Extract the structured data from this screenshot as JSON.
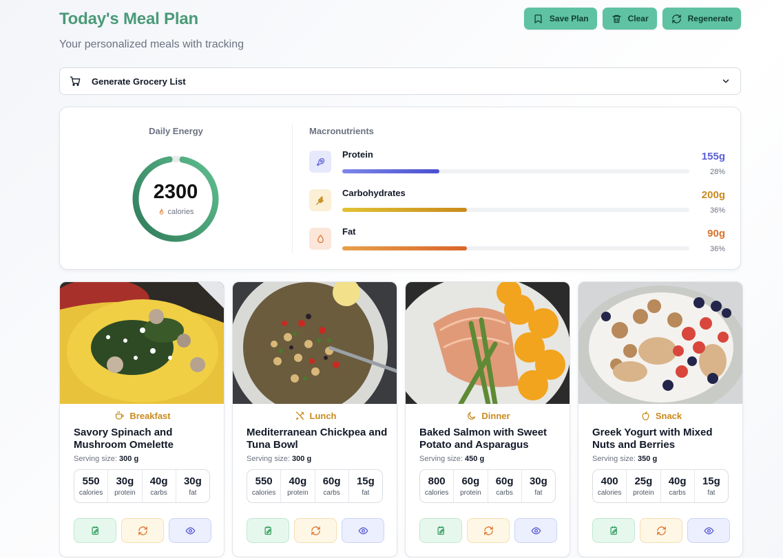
{
  "header": {
    "title": "Today's Meal Plan",
    "subtitle": "Your personalized meals with tracking"
  },
  "actions": {
    "save_label": "Save Plan",
    "clear_label": "Clear",
    "regenerate_label": "Regenerate"
  },
  "grocery": {
    "label": "Generate Grocery List"
  },
  "energy": {
    "title": "Daily Energy",
    "value": "2300",
    "unit": "calories"
  },
  "macros": {
    "title": "Macronutrients",
    "items": [
      {
        "name": "Protein",
        "value": "155g",
        "percent": "28%",
        "fill_fraction": 0.28,
        "color": "#5b5fd6"
      },
      {
        "name": "Carbohydrates",
        "value": "200g",
        "percent": "36%",
        "fill_fraction": 0.36,
        "color": "#c98a1c"
      },
      {
        "name": "Fat",
        "value": "90g",
        "percent": "36%",
        "fill_fraction": 0.36,
        "color": "#d9712b"
      }
    ]
  },
  "meals": [
    {
      "type": "Breakfast",
      "name": "Savory Spinach and Mushroom Omelette",
      "serving_label": "Serving size:",
      "serving": "300 g",
      "stats": [
        {
          "value": "550",
          "label": "calories"
        },
        {
          "value": "30g",
          "label": "protein"
        },
        {
          "value": "40g",
          "label": "carbs"
        },
        {
          "value": "30g",
          "label": "fat"
        }
      ]
    },
    {
      "type": "Lunch",
      "name": "Mediterranean Chickpea and Tuna Bowl",
      "serving_label": "Serving size:",
      "serving": "300 g",
      "stats": [
        {
          "value": "550",
          "label": "calories"
        },
        {
          "value": "40g",
          "label": "protein"
        },
        {
          "value": "60g",
          "label": "carbs"
        },
        {
          "value": "15g",
          "label": "fat"
        }
      ]
    },
    {
      "type": "Dinner",
      "name": "Baked Salmon with Sweet Potato and Asparagus",
      "serving_label": "Serving size:",
      "serving": "450 g",
      "stats": [
        {
          "value": "800",
          "label": "calories"
        },
        {
          "value": "60g",
          "label": "protein"
        },
        {
          "value": "60g",
          "label": "carbs"
        },
        {
          "value": "30g",
          "label": "fat"
        }
      ]
    },
    {
      "type": "Snack",
      "name": "Greek Yogurt with Mixed Nuts and Berries",
      "serving_label": "Serving size:",
      "serving": "350 g",
      "stats": [
        {
          "value": "400",
          "label": "calories"
        },
        {
          "value": "25g",
          "label": "protein"
        },
        {
          "value": "40g",
          "label": "carbs"
        },
        {
          "value": "15g",
          "label": "fat"
        }
      ]
    }
  ],
  "colors": {
    "brand": "#4a9a78",
    "button": "#5fc2a2",
    "meal_type": "#c98a1c"
  }
}
